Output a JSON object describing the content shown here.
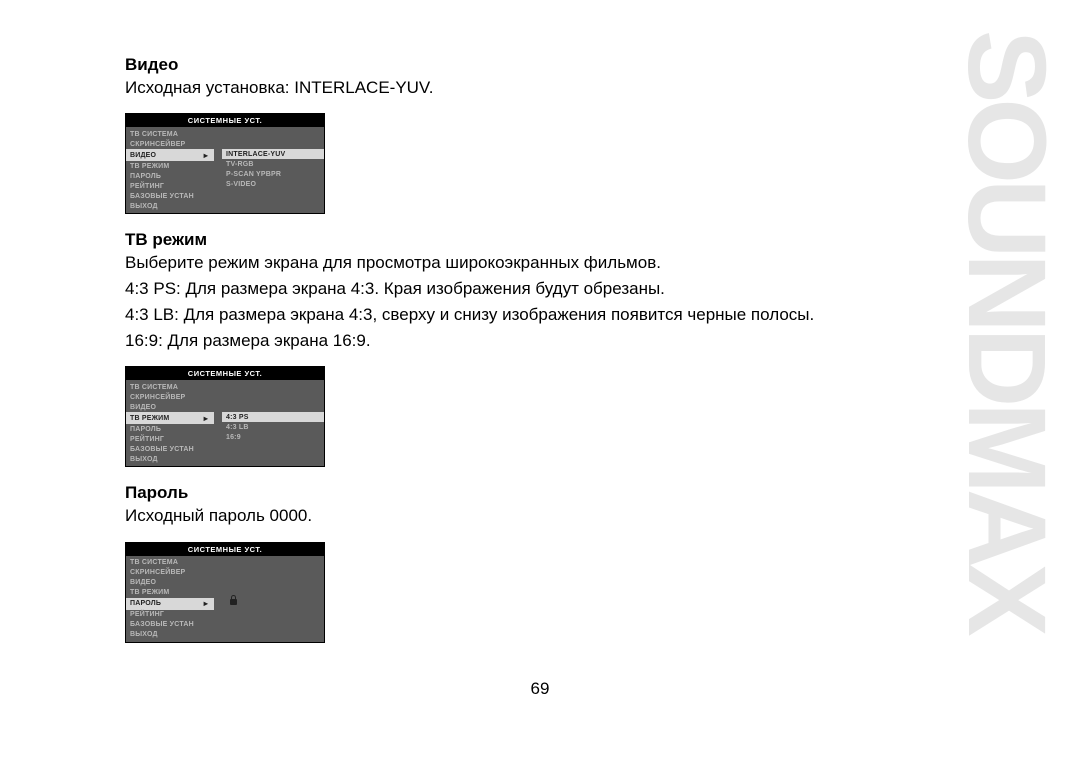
{
  "brand": "SOUNDMAX",
  "page_number": "69",
  "sections": {
    "video": {
      "title": "Видео",
      "text": "Исходная установка: INTERLACE-YUV."
    },
    "tvmode": {
      "title": "ТВ режим",
      "lines": [
        "Выберите режим экрана для просмотра широкоэкранных фильмов.",
        "4:3 PS: Для размера экрана 4:3. Края изображения будут обрезаны.",
        "4:3 LB: Для размера экрана 4:3, сверху и снизу изображения появится черные полосы.",
        "16:9: Для размера экрана 16:9."
      ]
    },
    "password": {
      "title": "Пароль",
      "text": "Исходный пароль 0000."
    }
  },
  "osd": {
    "title": "СИСТЕМНЫЕ УСТ.",
    "leftMenu": [
      "ТВ СИСТЕМА",
      "СКРИНСЕЙВЕР",
      "ВИДЕО",
      "ТВ РЕЖИМ",
      "ПАРОЛЬ",
      "РЕЙТИНГ",
      "БАЗОВЫЕ УСТАН",
      "ВЫХОД"
    ],
    "screen1": {
      "highlightIndex": 2,
      "rightStart": 2,
      "right": [
        "INTERLACE-YUV",
        "TV-RGB",
        "P-SCAN YPBPR",
        "S-VIDEO"
      ],
      "rightHighlightIndex": 0
    },
    "screen2": {
      "highlightIndex": 3,
      "rightStart": 3,
      "right": [
        "4:3 PS",
        "4:3 LB",
        "16:9"
      ],
      "rightHighlightIndex": 0
    },
    "screen3": {
      "highlightIndex": 4,
      "rightStart": 4,
      "right": [
        "lock"
      ],
      "rightHighlightIndex": -1
    }
  },
  "colors": {
    "brand": "#e6e6e6",
    "osd_bg": "#5a5a5a",
    "osd_title_bg": "#000000",
    "osd_text": "#b8b8b8",
    "osd_highlight_bg": "#d8d8d8",
    "osd_highlight_text": "#222222"
  }
}
